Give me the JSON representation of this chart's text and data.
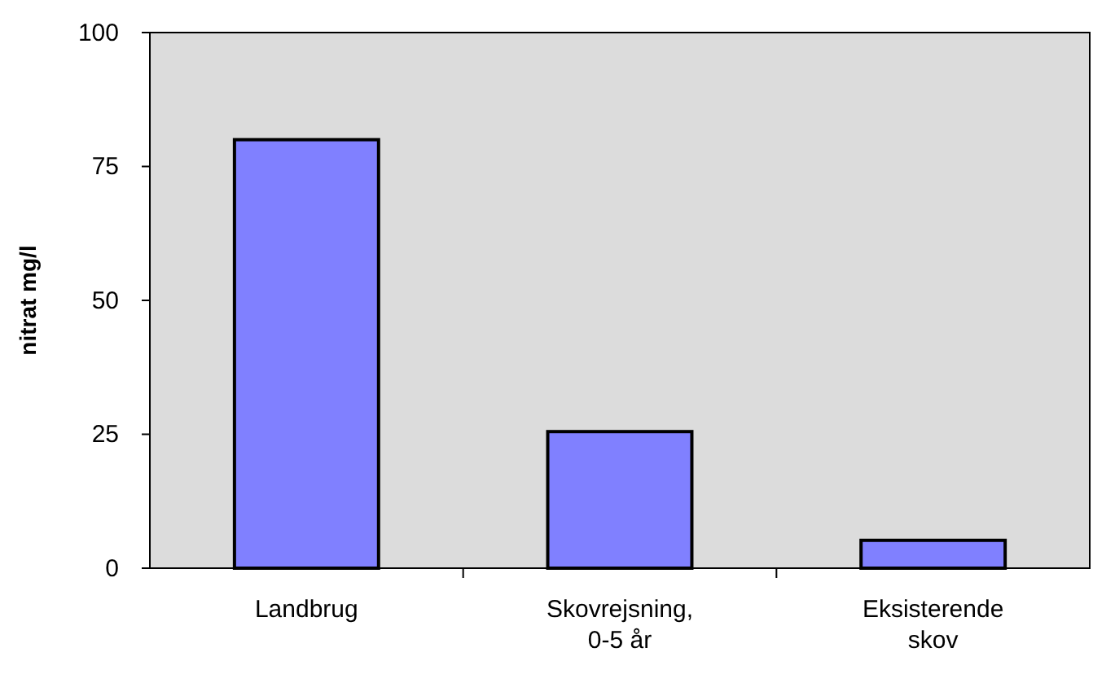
{
  "chart_data": {
    "type": "bar",
    "ylabel": "nitrat mg/l",
    "categories": [
      "Landbrug",
      "Skovrejsning, 0-5 år",
      "Eksisterende skov"
    ],
    "values": [
      80,
      25.5,
      5.2
    ],
    "color": "#8080ff",
    "ylim": [
      0,
      100
    ],
    "yticks": [
      0,
      25,
      50,
      75,
      100
    ],
    "grid": false
  }
}
